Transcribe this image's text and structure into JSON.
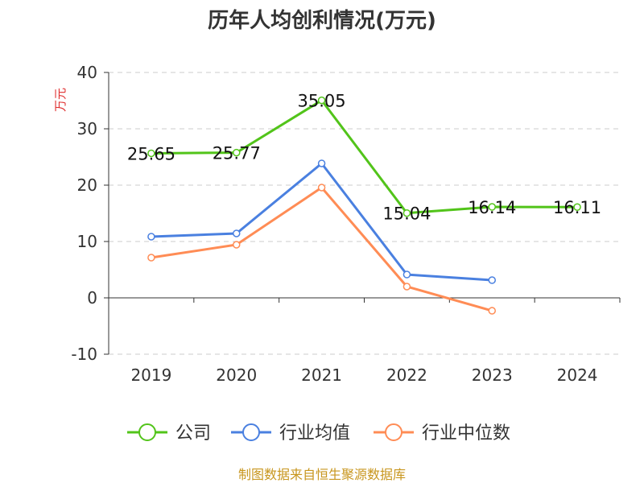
{
  "chart_data": {
    "type": "line",
    "title": "历年人均创利情况(万元)",
    "ylabel": "万元",
    "categories": [
      "2019",
      "2020",
      "2021",
      "2022",
      "2023",
      "2024"
    ],
    "ylim": [
      -10,
      40
    ],
    "yticks": [
      -10,
      0,
      10,
      20,
      30,
      40
    ],
    "grid": true,
    "legend_position": "bottom",
    "series": [
      {
        "name": "公司",
        "color": "#52c41a",
        "values": [
          25.65,
          25.77,
          35.05,
          15.04,
          16.14,
          16.11
        ],
        "labels": [
          "25.65",
          "25.77",
          "35.05",
          "15.04",
          "16.14",
          "16.11"
        ]
      },
      {
        "name": "行业均值",
        "color": "#4a80e0",
        "values": [
          10.86,
          11.43,
          23.86,
          4.14,
          3.14,
          null
        ]
      },
      {
        "name": "行业中位数",
        "color": "#ff8c55",
        "values": [
          7.14,
          9.43,
          19.57,
          2.0,
          -2.29,
          null
        ]
      }
    ]
  },
  "footer": "制图数据来自恒生聚源数据库"
}
